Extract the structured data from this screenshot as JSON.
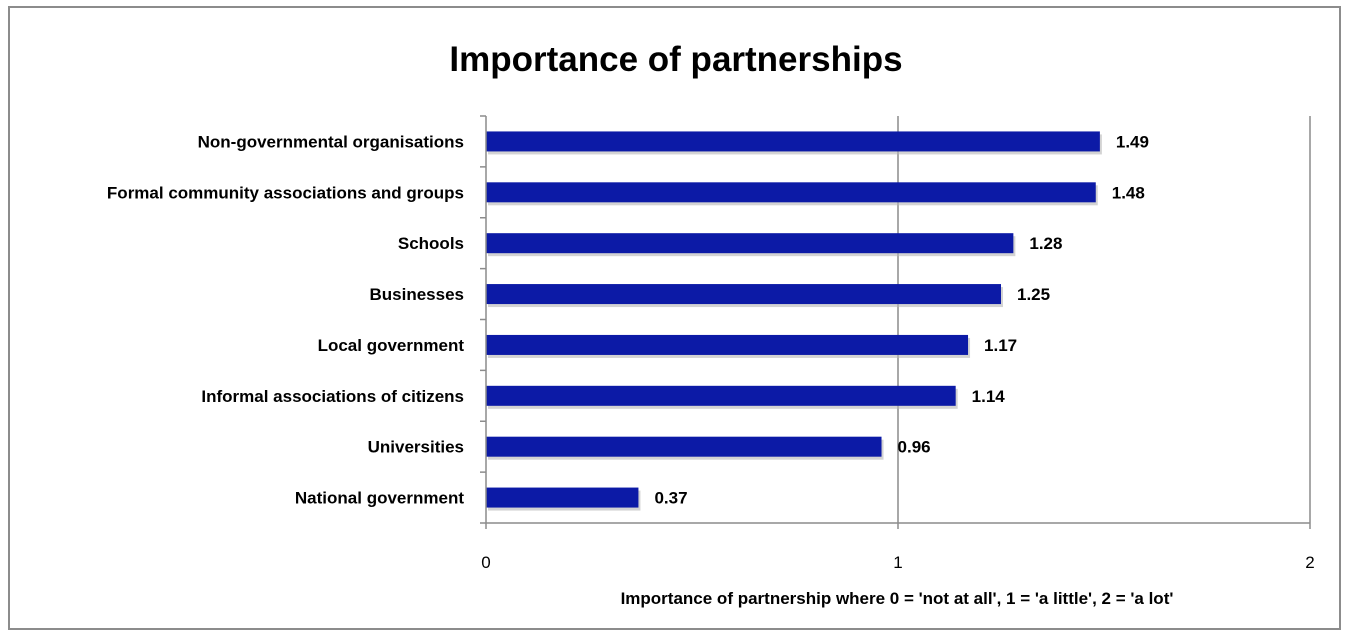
{
  "chart_data": {
    "type": "bar",
    "orientation": "horizontal",
    "title": "Importance of partnerships",
    "xlabel": "Importance of partnership where 0 = 'not at all', 1 = 'a little', 2 = 'a lot'",
    "ylabel": "",
    "xlim": [
      0,
      2
    ],
    "xticks": [
      "0",
      "1",
      "2"
    ],
    "grid": true,
    "bar_color": "#0c1aa6",
    "categories": [
      "Non-governmental organisations",
      "Formal community associations and groups",
      "Schools",
      "Businesses",
      "Local government",
      "Informal associations of citizens",
      "Universities",
      "National government"
    ],
    "values": [
      1.49,
      1.48,
      1.28,
      1.25,
      1.17,
      1.14,
      0.96,
      0.37
    ],
    "value_labels": [
      "1.49",
      "1.48",
      "1.28",
      "1.25",
      "1.17",
      "1.14",
      "0.96",
      "0.37"
    ]
  }
}
